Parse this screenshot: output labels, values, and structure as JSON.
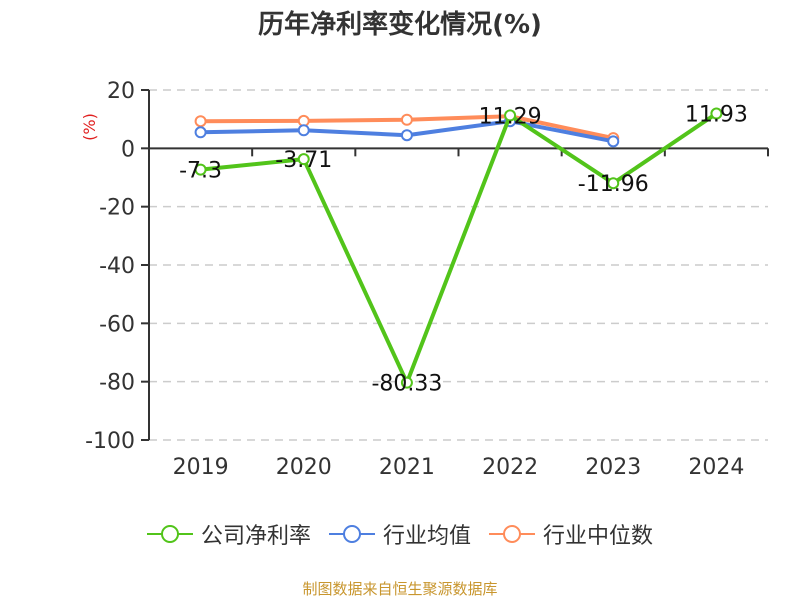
{
  "title": "历年净利率变化情况(%)",
  "y_unit_label": "(%)",
  "source": "制图数据来自恒生聚源数据库",
  "colors": {
    "company": "#52c41a",
    "industry_avg": "#4e7fe0",
    "industry_median": "#ff8c5a",
    "unit_label": "#e02020",
    "source": "#c8962e"
  },
  "legend": [
    {
      "name": "公司净利率",
      "color": "#52c41a"
    },
    {
      "name": "行业均值",
      "color": "#4e7fe0"
    },
    {
      "name": "行业中位数",
      "color": "#ff8c5a"
    }
  ],
  "chart_data": {
    "type": "line",
    "title": "历年净利率变化情况(%)",
    "xlabel": "",
    "ylabel": "(%)",
    "categories": [
      "2019",
      "2020",
      "2021",
      "2022",
      "2023",
      "2024"
    ],
    "ylim": [
      -100,
      20
    ],
    "yticks": [
      20,
      0,
      -20,
      -40,
      -60,
      -80,
      -100
    ],
    "grid": true,
    "legend_position": "bottom",
    "series": [
      {
        "name": "公司净利率",
        "values": [
          -7.3,
          -3.71,
          -80.33,
          11.29,
          -11.96,
          11.93
        ],
        "labels": [
          "-7.3",
          "-3.71",
          "-80.33",
          "11.29",
          "-11.96",
          "11.93"
        ]
      },
      {
        "name": "行业均值",
        "values": [
          5.5,
          6.2,
          4.5,
          9.3,
          2.4,
          null
        ]
      },
      {
        "name": "行业中位数",
        "values": [
          9.3,
          9.4,
          9.8,
          11.0,
          3.5,
          null
        ]
      }
    ]
  }
}
